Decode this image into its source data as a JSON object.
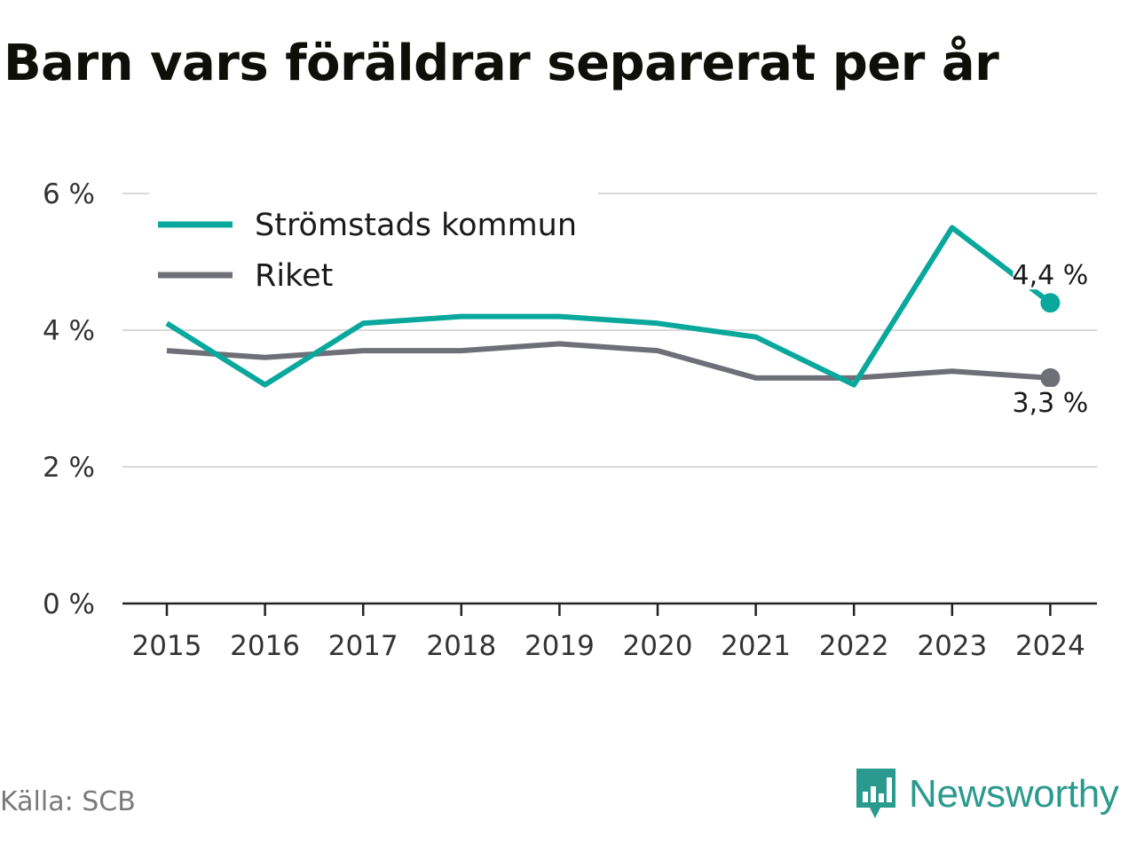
{
  "title": "Barn vars föräldrar separerat per år",
  "source": "Källa: SCB",
  "brand": "Newsworthy",
  "colors": {
    "primary": "#0aa89c",
    "secondary": "#6f6f78",
    "grid": "#d9d9d9",
    "axis": "#222222",
    "brand": "#2b9a8e"
  },
  "chart_data": {
    "type": "line",
    "x": [
      "2015",
      "2016",
      "2017",
      "2018",
      "2019",
      "2020",
      "2021",
      "2022",
      "2023",
      "2024"
    ],
    "yticks": [
      "0 %",
      "2 %",
      "4 %",
      "6 %"
    ],
    "ylim": [
      0,
      6
    ],
    "grid": true,
    "legend": "top-left",
    "series": [
      {
        "name": "Strömstads kommun",
        "values": [
          4.1,
          3.2,
          4.1,
          4.2,
          4.2,
          4.1,
          3.9,
          3.2,
          5.5,
          4.4
        ],
        "end_label": "4,4 %"
      },
      {
        "name": "Riket",
        "values": [
          3.7,
          3.6,
          3.7,
          3.7,
          3.8,
          3.7,
          3.3,
          3.3,
          3.4,
          3.3
        ],
        "end_label": "3,3 %"
      }
    ]
  }
}
